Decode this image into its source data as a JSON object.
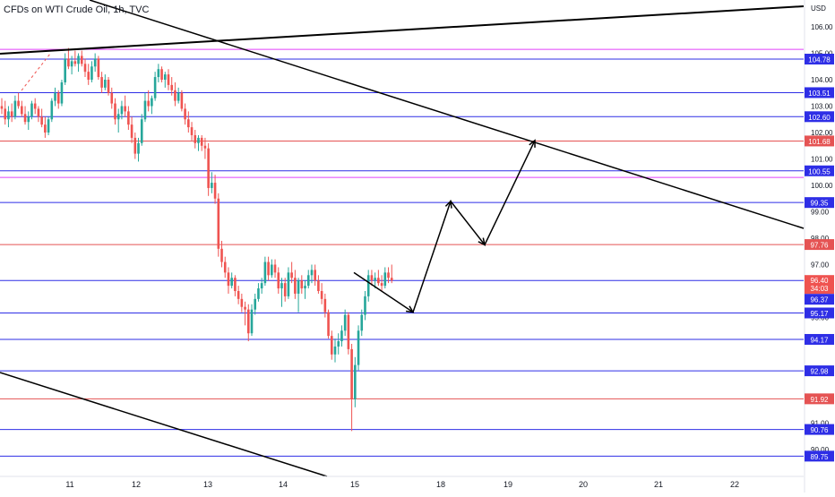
{
  "header": {
    "title": "CFDs on WTI Crude Oil, 1h, TVC"
  },
  "chart_data": {
    "type": "candlestick",
    "title": "CFDs on WTI Crude Oil, 1h, TVC",
    "currency_label": "USD",
    "y_range": [
      89.3,
      107.0
    ],
    "y_ticks": [
      "106.00",
      "105.00",
      "104.00",
      "103.00",
      "102.00",
      "101.00",
      "100.00",
      "99.00",
      "98.00",
      "97.00",
      "96.00",
      "95.00",
      "91.00",
      "90.00"
    ],
    "x_ticks": [
      "11",
      "12",
      "13",
      "14",
      "15",
      "18",
      "19",
      "20",
      "21",
      "22"
    ],
    "colors": {
      "up": "#26a69a",
      "down": "#ef5350",
      "blue_line": "#2e2ee6",
      "red_line": "#e55353",
      "magenta_line": "#e040fb",
      "trend": "#000000"
    },
    "horizontal_levels": [
      {
        "price": 105.15,
        "color": "magenta",
        "label": ""
      },
      {
        "price": 104.78,
        "color": "blue",
        "label": "104.78"
      },
      {
        "price": 103.51,
        "color": "blue",
        "label": "103.51"
      },
      {
        "price": 102.6,
        "color": "blue",
        "label": "102.60"
      },
      {
        "price": 101.68,
        "color": "red",
        "label": "101.68"
      },
      {
        "price": 100.55,
        "color": "blue",
        "label": "100.55"
      },
      {
        "price": 100.3,
        "color": "magenta",
        "label": ""
      },
      {
        "price": 99.35,
        "color": "blue",
        "label": "99.35"
      },
      {
        "price": 97.76,
        "color": "red",
        "label": "97.76"
      },
      {
        "price": 96.4,
        "color": "blue",
        "label": ""
      },
      {
        "price": 95.17,
        "color": "blue",
        "label": "95.17"
      },
      {
        "price": 94.17,
        "color": "blue",
        "label": "94.17"
      },
      {
        "price": 92.98,
        "color": "blue",
        "label": "92.98"
      },
      {
        "price": 91.92,
        "color": "red",
        "label": "91.92"
      },
      {
        "price": 90.76,
        "color": "blue",
        "label": "90.76"
      },
      {
        "price": 89.75,
        "color": "blue",
        "label": "89.75"
      }
    ],
    "current_price": {
      "label": "96.40",
      "countdown": "34:03"
    },
    "extra_label": "96.37",
    "projection_path": [
      96.7,
      95.2,
      99.4,
      97.75,
      101.7
    ],
    "candles": [
      [
        103.0,
        103.3,
        102.7,
        102.9
      ],
      [
        102.9,
        103.2,
        102.3,
        102.5
      ],
      [
        102.5,
        103.0,
        102.2,
        102.8
      ],
      [
        102.8,
        103.1,
        102.4,
        102.6
      ],
      [
        102.6,
        103.4,
        102.5,
        103.2
      ],
      [
        103.2,
        103.5,
        102.9,
        103.0
      ],
      [
        103.0,
        103.2,
        102.6,
        102.7
      ],
      [
        102.7,
        103.0,
        102.3,
        102.4
      ],
      [
        102.4,
        102.8,
        102.1,
        102.6
      ],
      [
        102.6,
        103.2,
        102.5,
        103.1
      ],
      [
        103.1,
        103.3,
        102.7,
        102.9
      ],
      [
        102.9,
        103.0,
        102.4,
        102.6
      ],
      [
        102.6,
        102.9,
        102.2,
        102.3
      ],
      [
        102.3,
        102.6,
        101.8,
        102.0
      ],
      [
        102.0,
        102.6,
        101.9,
        102.5
      ],
      [
        102.5,
        103.3,
        102.4,
        103.2
      ],
      [
        103.2,
        103.7,
        103.0,
        103.5
      ],
      [
        103.5,
        103.6,
        102.9,
        103.1
      ],
      [
        103.1,
        104.0,
        103.0,
        103.9
      ],
      [
        103.9,
        105.0,
        103.8,
        104.8
      ],
      [
        104.8,
        105.2,
        104.4,
        104.5
      ],
      [
        104.5,
        104.9,
        104.2,
        104.7
      ],
      [
        104.7,
        105.1,
        104.5,
        104.6
      ],
      [
        104.6,
        105.0,
        104.3,
        104.9
      ],
      [
        104.9,
        105.1,
        104.5,
        104.6
      ],
      [
        104.6,
        104.8,
        104.1,
        104.3
      ],
      [
        104.3,
        104.6,
        103.8,
        104.0
      ],
      [
        104.0,
        104.7,
        103.9,
        104.5
      ],
      [
        104.5,
        105.0,
        104.3,
        104.8
      ],
      [
        104.8,
        104.9,
        104.0,
        104.1
      ],
      [
        104.1,
        104.3,
        103.5,
        103.7
      ],
      [
        103.7,
        104.2,
        103.6,
        104.0
      ],
      [
        104.0,
        104.1,
        103.4,
        103.5
      ],
      [
        103.5,
        103.7,
        102.9,
        103.1
      ],
      [
        103.1,
        103.3,
        102.3,
        102.5
      ],
      [
        102.5,
        102.9,
        102.0,
        102.7
      ],
      [
        102.7,
        103.2,
        102.5,
        103.0
      ],
      [
        103.0,
        103.4,
        102.6,
        102.8
      ],
      [
        102.8,
        103.0,
        102.1,
        102.3
      ],
      [
        102.3,
        102.6,
        101.6,
        101.8
      ],
      [
        101.8,
        102.0,
        101.0,
        101.2
      ],
      [
        101.2,
        101.8,
        100.9,
        101.6
      ],
      [
        101.6,
        102.7,
        101.5,
        102.5
      ],
      [
        102.5,
        103.5,
        102.4,
        103.2
      ],
      [
        103.2,
        103.6,
        102.8,
        103.0
      ],
      [
        103.0,
        103.4,
        102.7,
        103.3
      ],
      [
        103.3,
        104.3,
        103.2,
        104.1
      ],
      [
        104.1,
        104.6,
        103.9,
        104.4
      ],
      [
        104.4,
        104.5,
        103.9,
        104.0
      ],
      [
        104.0,
        104.3,
        103.7,
        104.2
      ],
      [
        104.2,
        104.4,
        103.6,
        103.8
      ],
      [
        103.8,
        104.1,
        103.4,
        103.6
      ],
      [
        103.6,
        103.9,
        103.0,
        103.2
      ],
      [
        103.2,
        103.7,
        103.1,
        103.5
      ],
      [
        103.5,
        103.6,
        102.8,
        102.9
      ],
      [
        102.9,
        103.1,
        102.3,
        102.5
      ],
      [
        102.5,
        102.8,
        102.0,
        102.2
      ],
      [
        102.2,
        102.4,
        101.7,
        101.9
      ],
      [
        101.9,
        102.1,
        101.4,
        101.6
      ],
      [
        101.6,
        101.9,
        101.3,
        101.8
      ],
      [
        101.8,
        101.9,
        101.3,
        101.5
      ],
      [
        101.5,
        101.8,
        101.0,
        101.4
      ],
      [
        101.4,
        101.6,
        99.6,
        99.9
      ],
      [
        99.9,
        100.5,
        99.7,
        100.1
      ],
      [
        100.1,
        100.4,
        99.3,
        99.5
      ],
      [
        99.5,
        99.7,
        97.3,
        97.6
      ],
      [
        97.6,
        97.9,
        96.9,
        97.1
      ],
      [
        97.1,
        97.3,
        96.5,
        96.7
      ],
      [
        96.7,
        96.9,
        95.9,
        96.2
      ],
      [
        96.2,
        96.7,
        96.1,
        96.5
      ],
      [
        96.5,
        96.6,
        95.8,
        96.0
      ],
      [
        96.0,
        96.2,
        95.5,
        95.7
      ],
      [
        95.7,
        95.9,
        95.2,
        95.4
      ],
      [
        95.4,
        95.6,
        94.7,
        95.3
      ],
      [
        95.3,
        95.5,
        94.1,
        94.4
      ],
      [
        94.4,
        95.5,
        94.3,
        95.3
      ],
      [
        95.3,
        95.9,
        95.1,
        95.7
      ],
      [
        95.7,
        96.3,
        95.6,
        96.1
      ],
      [
        96.1,
        96.5,
        95.9,
        96.3
      ],
      [
        96.3,
        97.3,
        96.2,
        97.1
      ],
      [
        97.1,
        97.3,
        96.4,
        96.6
      ],
      [
        96.6,
        97.2,
        96.5,
        97.0
      ],
      [
        97.0,
        97.2,
        96.5,
        96.7
      ],
      [
        96.7,
        96.9,
        95.9,
        96.1
      ],
      [
        96.1,
        96.5,
        95.4,
        96.3
      ],
      [
        96.3,
        96.5,
        95.6,
        95.8
      ],
      [
        95.8,
        96.9,
        95.7,
        96.7
      ],
      [
        96.7,
        97.1,
        96.3,
        96.5
      ],
      [
        96.5,
        96.8,
        95.7,
        95.9
      ],
      [
        95.9,
        96.5,
        95.2,
        96.4
      ],
      [
        96.4,
        96.6,
        95.9,
        96.1
      ],
      [
        96.1,
        96.4,
        95.7,
        96.2
      ],
      [
        96.2,
        96.8,
        96.1,
        96.6
      ],
      [
        96.6,
        97.0,
        96.3,
        96.8
      ],
      [
        96.8,
        97.0,
        96.2,
        96.4
      ],
      [
        96.4,
        96.6,
        95.9,
        96.0
      ],
      [
        96.0,
        96.3,
        95.5,
        95.7
      ],
      [
        95.7,
        95.9,
        95.0,
        95.2
      ],
      [
        95.2,
        95.3,
        94.2,
        94.3
      ],
      [
        94.3,
        94.5,
        93.4,
        93.6
      ],
      [
        93.6,
        94.2,
        93.3,
        93.9
      ],
      [
        93.9,
        94.4,
        93.6,
        94.1
      ],
      [
        94.1,
        94.7,
        93.9,
        94.5
      ],
      [
        94.5,
        95.3,
        94.3,
        95.1
      ],
      [
        95.1,
        95.2,
        93.6,
        93.8
      ],
      [
        93.8,
        94.0,
        90.7,
        91.9
      ],
      [
        91.9,
        93.5,
        91.6,
        93.2
      ],
      [
        93.2,
        94.7,
        93.0,
        94.5
      ],
      [
        94.5,
        95.3,
        94.3,
        95.1
      ],
      [
        95.1,
        96.0,
        94.9,
        95.8
      ],
      [
        95.8,
        96.8,
        95.6,
        96.6
      ],
      [
        96.6,
        96.8,
        96.2,
        96.4
      ],
      [
        96.4,
        96.7,
        96.1,
        96.5
      ],
      [
        96.5,
        96.8,
        96.2,
        96.3
      ],
      [
        96.3,
        96.6,
        96.0,
        96.2
      ],
      [
        96.2,
        96.9,
        96.1,
        96.7
      ],
      [
        96.7,
        96.9,
        96.3,
        96.5
      ],
      [
        96.5,
        97.0,
        96.3,
        96.4
      ]
    ]
  }
}
